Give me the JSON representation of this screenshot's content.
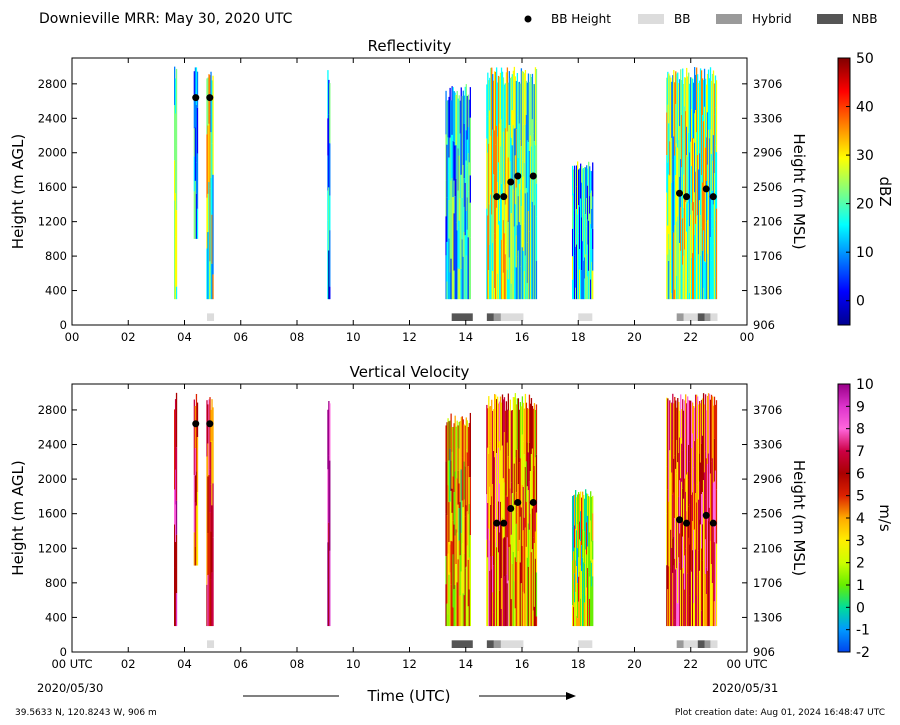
{
  "header": {
    "title": "Downieville MRR:  May 30, 2020 UTC",
    "legend": [
      {
        "label": "BB Height",
        "kind": "marker",
        "color": "#000000"
      },
      {
        "label": "BB",
        "kind": "swatch",
        "color": "#dcdcdc"
      },
      {
        "label": "Hybrid",
        "kind": "swatch",
        "color": "#9a9a9a"
      },
      {
        "label": "NBB",
        "kind": "swatch",
        "color": "#555555"
      }
    ]
  },
  "footer": {
    "location": "39.5633 N, 120.8243 W, 906 m",
    "creation": "Plot creation date: Aug 01, 2024 16:48:47 UTC",
    "xlabel": "Time (UTC)",
    "start_date": "2020/05/30",
    "end_date": "2020/05/31"
  },
  "chart_data": [
    {
      "type": "heatmap",
      "title": "Reflectivity",
      "xlabel": "",
      "ylabel": "Height (m AGL)",
      "y2label": "Height (m MSL)",
      "xlim": [
        0,
        24
      ],
      "ylim": [
        0,
        3100
      ],
      "xticks": [
        "00",
        "02",
        "04",
        "06",
        "08",
        "10",
        "12",
        "14",
        "16",
        "18",
        "20",
        "22",
        "00"
      ],
      "yticks": [
        0,
        400,
        800,
        1200,
        1600,
        2000,
        2400,
        2800
      ],
      "y2ticks": [
        "906",
        "1306",
        "1706",
        "2106",
        "2506",
        "2906",
        "3306",
        "3706"
      ],
      "colorbar": {
        "label": "dBZ",
        "range": [
          -5,
          50
        ],
        "ticks": [
          "0",
          "10",
          "20",
          "30",
          "40",
          "50"
        ],
        "tick_values": [
          0,
          10,
          20,
          30,
          40,
          50
        ]
      },
      "echo_segments": [
        {
          "start": 3.65,
          "end": 3.75,
          "top": 3000,
          "bottom": 300,
          "level": 0.45
        },
        {
          "start": 4.35,
          "end": 4.5,
          "top": 3000,
          "bottom": 1000,
          "level": 0.28
        },
        {
          "start": 4.8,
          "end": 5.05,
          "top": 3000,
          "bottom": 300,
          "level": 0.5
        },
        {
          "start": 9.1,
          "end": 9.2,
          "top": 3000,
          "bottom": 300,
          "level": 0.3
        },
        {
          "start": 13.3,
          "end": 14.2,
          "top": 2800,
          "bottom": 300,
          "level": 0.35
        },
        {
          "start": 14.75,
          "end": 15.55,
          "top": 3000,
          "bottom": 300,
          "level": 0.55
        },
        {
          "start": 15.55,
          "end": 16.55,
          "top": 3000,
          "bottom": 300,
          "level": 0.45
        },
        {
          "start": 17.8,
          "end": 18.55,
          "top": 1900,
          "bottom": 300,
          "level": 0.35
        },
        {
          "start": 21.15,
          "end": 22.95,
          "top": 3000,
          "bottom": 300,
          "level": 0.5
        }
      ],
      "bb_height_points": [
        {
          "x": 4.4,
          "y": 2640
        },
        {
          "x": 4.9,
          "y": 2640
        },
        {
          "x": 15.1,
          "y": 1490
        },
        {
          "x": 15.35,
          "y": 1490
        },
        {
          "x": 15.6,
          "y": 1660
        },
        {
          "x": 15.85,
          "y": 1730
        },
        {
          "x": 16.4,
          "y": 1730
        },
        {
          "x": 21.6,
          "y": 1530
        },
        {
          "x": 21.85,
          "y": 1490
        },
        {
          "x": 22.55,
          "y": 1580
        },
        {
          "x": 22.8,
          "y": 1490
        }
      ],
      "bb_class_bars": [
        {
          "start": 4.8,
          "end": 5.05,
          "class": "BB"
        },
        {
          "start": 13.5,
          "end": 14.25,
          "class": "NBB"
        },
        {
          "start": 14.75,
          "end": 15.0,
          "class": "NBB"
        },
        {
          "start": 15.0,
          "end": 15.25,
          "class": "Hybrid"
        },
        {
          "start": 15.25,
          "end": 16.05,
          "class": "BB"
        },
        {
          "start": 18.0,
          "end": 18.5,
          "class": "BB"
        },
        {
          "start": 21.5,
          "end": 21.75,
          "class": "Hybrid"
        },
        {
          "start": 21.75,
          "end": 22.25,
          "class": "BB"
        },
        {
          "start": 22.25,
          "end": 22.5,
          "class": "NBB"
        },
        {
          "start": 22.5,
          "end": 22.7,
          "class": "Hybrid"
        },
        {
          "start": 22.7,
          "end": 22.95,
          "class": "BB"
        }
      ]
    },
    {
      "type": "heatmap",
      "title": "Vertical Velocity",
      "xlabel": "Time (UTC)",
      "ylabel": "Height (m AGL)",
      "y2label": "Height (m MSL)",
      "xlim": [
        0,
        24
      ],
      "ylim": [
        0,
        3100
      ],
      "xticks": [
        "00 UTC",
        "02",
        "04",
        "06",
        "08",
        "10",
        "12",
        "14",
        "16",
        "18",
        "20",
        "22",
        "00 UTC"
      ],
      "yticks": [
        0,
        400,
        800,
        1200,
        1600,
        2000,
        2400,
        2800
      ],
      "y2ticks": [
        "906",
        "1306",
        "1706",
        "2106",
        "2506",
        "2906",
        "3306",
        "3706"
      ],
      "colorbar": {
        "label": "m/s",
        "range": [
          -2,
          10
        ],
        "ticks": [
          "-2",
          "-1",
          "0",
          "1",
          "2",
          "3",
          "4",
          "5",
          "6",
          "7",
          "8",
          "9",
          "10"
        ],
        "tick_values": [
          -2,
          -1,
          0,
          1,
          2,
          3,
          4,
          5,
          6,
          7,
          8,
          9,
          10
        ]
      },
      "echo_segments": [
        {
          "start": 3.65,
          "end": 3.75,
          "top": 3000,
          "bottom": 300,
          "level": 0.75
        },
        {
          "start": 4.35,
          "end": 4.5,
          "top": 3000,
          "bottom": 1000,
          "level": 0.62
        },
        {
          "start": 4.8,
          "end": 5.05,
          "top": 3000,
          "bottom": 300,
          "level": 0.6
        },
        {
          "start": 9.1,
          "end": 9.2,
          "top": 3000,
          "bottom": 300,
          "level": 0.85
        },
        {
          "start": 13.3,
          "end": 14.2,
          "top": 2800,
          "bottom": 300,
          "level": 0.45
        },
        {
          "start": 14.75,
          "end": 15.55,
          "top": 3000,
          "bottom": 300,
          "level": 0.6
        },
        {
          "start": 15.55,
          "end": 16.55,
          "top": 3000,
          "bottom": 300,
          "level": 0.5
        },
        {
          "start": 17.8,
          "end": 18.55,
          "top": 1900,
          "bottom": 300,
          "level": 0.35
        },
        {
          "start": 21.15,
          "end": 22.95,
          "top": 3000,
          "bottom": 300,
          "level": 0.62
        }
      ],
      "bb_height_points": [
        {
          "x": 4.4,
          "y": 2640
        },
        {
          "x": 4.9,
          "y": 2640
        },
        {
          "x": 15.1,
          "y": 1490
        },
        {
          "x": 15.35,
          "y": 1490
        },
        {
          "x": 15.6,
          "y": 1660
        },
        {
          "x": 15.85,
          "y": 1730
        },
        {
          "x": 16.4,
          "y": 1730
        },
        {
          "x": 21.6,
          "y": 1530
        },
        {
          "x": 21.85,
          "y": 1490
        },
        {
          "x": 22.55,
          "y": 1580
        },
        {
          "x": 22.8,
          "y": 1490
        }
      ],
      "bb_class_bars": [
        {
          "start": 4.8,
          "end": 5.05,
          "class": "BB"
        },
        {
          "start": 13.5,
          "end": 14.25,
          "class": "NBB"
        },
        {
          "start": 14.75,
          "end": 15.0,
          "class": "NBB"
        },
        {
          "start": 15.0,
          "end": 15.25,
          "class": "Hybrid"
        },
        {
          "start": 15.25,
          "end": 16.05,
          "class": "BB"
        },
        {
          "start": 18.0,
          "end": 18.5,
          "class": "BB"
        },
        {
          "start": 21.5,
          "end": 21.75,
          "class": "Hybrid"
        },
        {
          "start": 21.75,
          "end": 22.25,
          "class": "BB"
        },
        {
          "start": 22.25,
          "end": 22.5,
          "class": "NBB"
        },
        {
          "start": 22.5,
          "end": 22.7,
          "class": "Hybrid"
        },
        {
          "start": 22.7,
          "end": 22.95,
          "class": "BB"
        }
      ]
    }
  ]
}
